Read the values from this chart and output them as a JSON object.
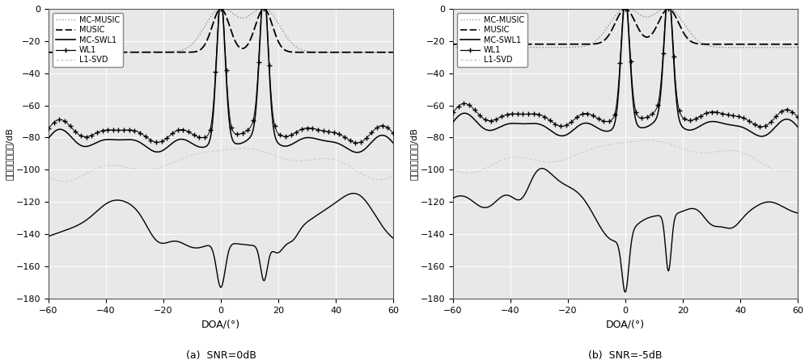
{
  "title_a": "(a)  SNR=0dB",
  "title_b": "(b)  SNR=-5dB",
  "xlabel": "DOA/(°)",
  "ylabel": "归一化输出功率/dB",
  "xlim": [
    -60,
    60
  ],
  "ylim": [
    -180,
    0
  ],
  "xticks": [
    -60,
    -40,
    -20,
    0,
    20,
    40,
    60
  ],
  "yticks": [
    0,
    -20,
    -40,
    -60,
    -80,
    -100,
    -120,
    -140,
    -160,
    -180
  ],
  "legend_labels": [
    "MC-MUSIC",
    "MUSIC",
    "MC-SWL1",
    "WL1",
    "L1-SVD"
  ],
  "bg_color": "#e8e8e8",
  "grid_color": "#ffffff",
  "sources": [
    0,
    15
  ],
  "music_base_a": -27,
  "music_base_b": -22,
  "mc_music_base_a": -27,
  "mc_music_base_b": -24,
  "swl1_base_a": -88,
  "swl1_base_b": -78,
  "deep_base_a": -148,
  "deep_base_b": -128
}
